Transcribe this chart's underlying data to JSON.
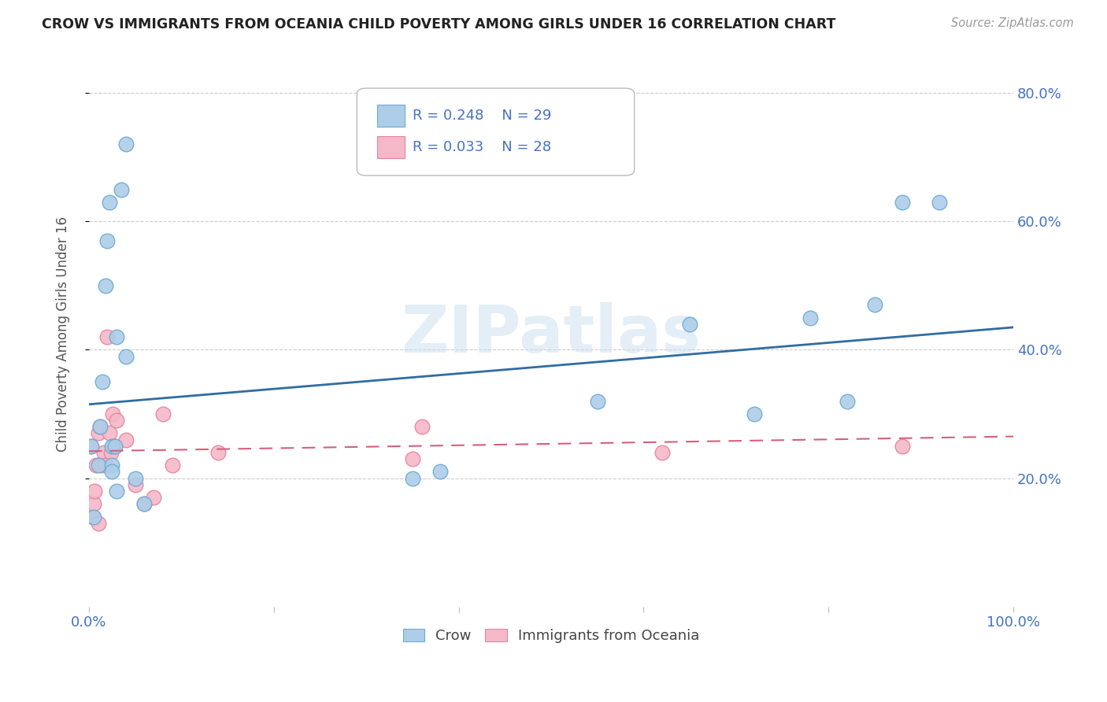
{
  "title": "CROW VS IMMIGRANTS FROM OCEANIA CHILD POVERTY AMONG GIRLS UNDER 16 CORRELATION CHART",
  "source": "Source: ZipAtlas.com",
  "ylabel": "Child Poverty Among Girls Under 16",
  "xlabel_crow": "Crow",
  "xlabel_oceania": "Immigrants from Oceania",
  "legend_crow_R": "R = 0.248",
  "legend_crow_N": "N = 29",
  "legend_oceania_R": "R = 0.033",
  "legend_oceania_N": "N = 28",
  "xlim": [
    0,
    1.0
  ],
  "ylim": [
    0,
    0.85
  ],
  "xticks": [
    0.0,
    0.2,
    0.4,
    0.6,
    0.8,
    1.0
  ],
  "yticks": [
    0.2,
    0.4,
    0.6,
    0.8
  ],
  "ytick_labels": [
    "20.0%",
    "40.0%",
    "60.0%",
    "80.0%"
  ],
  "crow_color": "#aecde8",
  "crow_edge_color": "#6aaad4",
  "oceania_color": "#f4b8c8",
  "oceania_edge_color": "#e8829e",
  "trendline_crow_color": "#2e6da4",
  "trendline_oceania_color": "#d4607a",
  "watermark": "ZIPatlas",
  "crow_x": [
    0.003,
    0.005,
    0.01,
    0.012,
    0.015,
    0.018,
    0.02,
    0.022,
    0.025,
    0.025,
    0.025,
    0.028,
    0.03,
    0.03,
    0.035,
    0.04,
    0.04,
    0.05,
    0.06,
    0.35,
    0.38,
    0.55,
    0.65,
    0.72,
    0.78,
    0.82,
    0.85,
    0.88,
    0.92
  ],
  "crow_y": [
    0.25,
    0.14,
    0.22,
    0.28,
    0.35,
    0.5,
    0.57,
    0.63,
    0.25,
    0.22,
    0.21,
    0.25,
    0.18,
    0.42,
    0.65,
    0.72,
    0.39,
    0.2,
    0.16,
    0.2,
    0.21,
    0.32,
    0.44,
    0.3,
    0.45,
    0.32,
    0.47,
    0.63,
    0.63
  ],
  "oceania_x": [
    0.002,
    0.004,
    0.005,
    0.006,
    0.008,
    0.01,
    0.01,
    0.012,
    0.014,
    0.016,
    0.018,
    0.02,
    0.022,
    0.024,
    0.026,
    0.028,
    0.03,
    0.04,
    0.05,
    0.06,
    0.07,
    0.08,
    0.09,
    0.14,
    0.35,
    0.36,
    0.62,
    0.88
  ],
  "oceania_y": [
    0.25,
    0.14,
    0.16,
    0.18,
    0.22,
    0.13,
    0.27,
    0.28,
    0.22,
    0.24,
    0.22,
    0.42,
    0.27,
    0.24,
    0.3,
    0.25,
    0.29,
    0.26,
    0.19,
    0.16,
    0.17,
    0.3,
    0.22,
    0.24,
    0.23,
    0.28,
    0.24,
    0.25
  ],
  "crow_trend_x": [
    0.0,
    1.0
  ],
  "crow_trend_y": [
    0.315,
    0.435
  ],
  "oceania_trend_x": [
    0.0,
    1.0
  ],
  "oceania_trend_y": [
    0.242,
    0.265
  ]
}
